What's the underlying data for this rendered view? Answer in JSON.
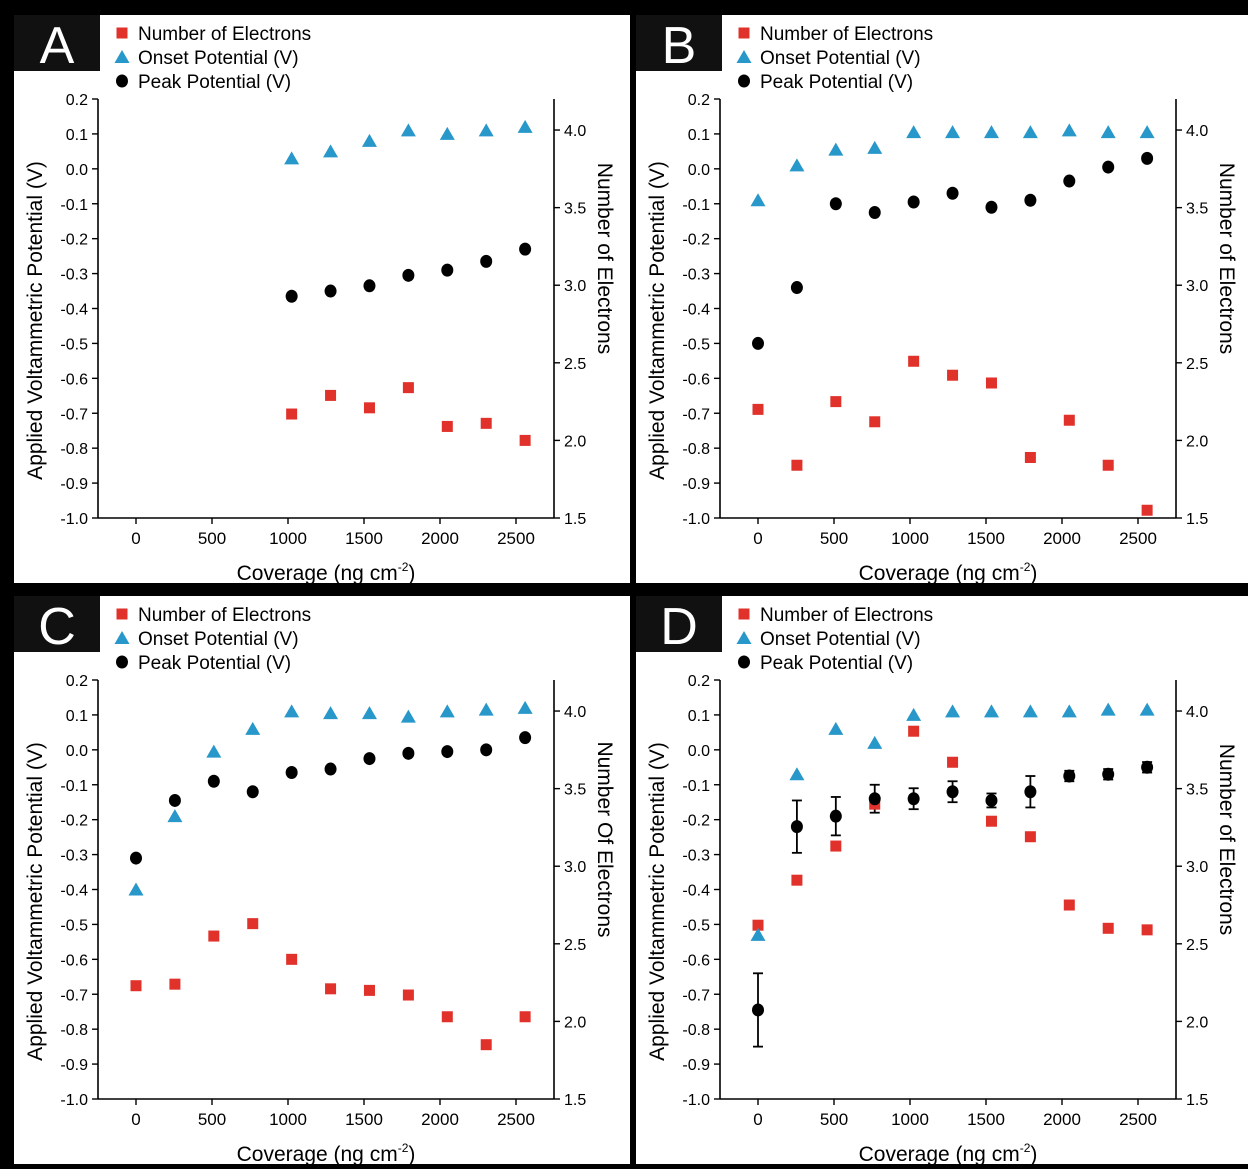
{
  "colors": {
    "electrons": "#e0312b",
    "onset": "#2897c9",
    "peak": "#000000",
    "panel_bg": "#ffffff",
    "frame": "#111111"
  },
  "icons": {
    "electrons": "square-marker",
    "onset": "triangle-marker",
    "peak": "circle-marker"
  },
  "chart_data": [
    {
      "panel": "A",
      "type": "scatter",
      "xlabel": "Coverage (ng cm",
      "xlabel_sup": "-2",
      "xlabel_end": ")",
      "ylabel": "Applied Voltammetric Potential (V)",
      "ylabel_right": "Number of Electrons",
      "xlim": [
        -250,
        2750
      ],
      "ylim": [
        -1.0,
        0.2
      ],
      "ylim_right": [
        1.5,
        4.2
      ],
      "xticks": [
        "0",
        "500",
        "1000",
        "1500",
        "2000",
        "2500"
      ],
      "yticks": [
        "0.2",
        "0.1",
        "0.0",
        "-0.1",
        "-0.2",
        "-0.3",
        "-0.4",
        "-0.5",
        "-0.6",
        "-0.7",
        "-0.8",
        "-0.9",
        "-1.0"
      ],
      "yticks_right": [
        "4.0",
        "3.5",
        "3.0",
        "2.5",
        "2.0",
        "1.5"
      ],
      "legend": [
        "Number of Electrons",
        "Onset Potential (V)",
        "Peak Potential (V)"
      ],
      "x": [
        1024,
        1280,
        1536,
        1792,
        2048,
        2304,
        2560
      ],
      "series": [
        {
          "name": "Number of Electrons",
          "axis": "right",
          "values": [
            2.17,
            2.29,
            2.21,
            2.34,
            2.09,
            2.11,
            2.0
          ]
        },
        {
          "name": "Onset Potential (V)",
          "axis": "left",
          "values": [
            0.03,
            0.05,
            0.08,
            0.11,
            0.1,
            0.11,
            0.12
          ]
        },
        {
          "name": "Peak Potential (V)",
          "axis": "left",
          "values": [
            -0.365,
            -0.35,
            -0.335,
            -0.305,
            -0.29,
            -0.265,
            -0.23
          ]
        }
      ]
    },
    {
      "panel": "B",
      "type": "scatter",
      "xlabel": "Coverage (ng cm",
      "xlabel_sup": "-2",
      "xlabel_end": ")",
      "ylabel": "Applied Voltammetric Potential (V)",
      "ylabel_right": "Number of Electrons",
      "xlim": [
        -250,
        2750
      ],
      "ylim": [
        -1.0,
        0.2
      ],
      "ylim_right": [
        1.5,
        4.2
      ],
      "xticks": [
        "0",
        "500",
        "1000",
        "1500",
        "2000",
        "2500"
      ],
      "yticks": [
        "0.2",
        "0.1",
        "0.0",
        "-0.1",
        "-0.2",
        "-0.3",
        "-0.4",
        "-0.5",
        "-0.6",
        "-0.7",
        "-0.8",
        "-0.9",
        "-1.0"
      ],
      "yticks_right": [
        "4.0",
        "3.5",
        "3.0",
        "2.5",
        "2.0",
        "1.5"
      ],
      "legend": [
        "Number of Electrons",
        "Onset Potential (V)",
        "Peak Potential (V)"
      ],
      "x": [
        0,
        256,
        512,
        768,
        1024,
        1280,
        1536,
        1792,
        2048,
        2304,
        2560
      ],
      "series": [
        {
          "name": "Number of Electrons",
          "axis": "right",
          "values": [
            2.2,
            1.84,
            2.25,
            2.12,
            2.51,
            2.42,
            2.37,
            1.89,
            2.13,
            1.84,
            1.55
          ]
        },
        {
          "name": "Onset Potential (V)",
          "axis": "left",
          "values": [
            -0.09,
            0.01,
            0.055,
            0.06,
            0.105,
            0.105,
            0.105,
            0.105,
            0.11,
            0.105,
            0.105
          ]
        },
        {
          "name": "Peak Potential (V)",
          "axis": "left",
          "values": [
            -0.5,
            -0.34,
            -0.1,
            -0.125,
            -0.095,
            -0.07,
            -0.11,
            -0.09,
            -0.035,
            0.005,
            0.03
          ]
        }
      ]
    },
    {
      "panel": "C",
      "type": "scatter",
      "xlabel": "Coverage (ng cm",
      "xlabel_sup": "-2",
      "xlabel_end": ")",
      "ylabel": "Applied Voltammetric Potential (V)",
      "ylabel_right": "Number Of Electrons",
      "xlim": [
        -250,
        2750
      ],
      "ylim": [
        -1.0,
        0.2
      ],
      "ylim_right": [
        1.5,
        4.2
      ],
      "xticks": [
        "0",
        "500",
        "1000",
        "1500",
        "2000",
        "2500"
      ],
      "yticks": [
        "0.2",
        "0.1",
        "0.0",
        "-0.1",
        "-0.2",
        "-0.3",
        "-0.4",
        "-0.5",
        "-0.6",
        "-0.7",
        "-0.8",
        "-0.9",
        "-1.0"
      ],
      "yticks_right": [
        "4.0",
        "3.5",
        "3.0",
        "2.5",
        "2.0",
        "1.5"
      ],
      "legend": [
        "Number of Electrons",
        "Onset Potential (V)",
        "Peak Potential (V)"
      ],
      "x": [
        0,
        256,
        512,
        768,
        1024,
        1280,
        1536,
        1792,
        2048,
        2304,
        2560
      ],
      "series": [
        {
          "name": "Number of Electrons",
          "axis": "right",
          "values": [
            2.23,
            2.24,
            2.55,
            2.63,
            2.4,
            2.21,
            2.2,
            2.17,
            2.03,
            1.85,
            2.03
          ]
        },
        {
          "name": "Onset Potential (V)",
          "axis": "left",
          "values": [
            -0.4,
            -0.19,
            -0.005,
            0.06,
            0.11,
            0.105,
            0.105,
            0.095,
            0.11,
            0.115,
            0.12
          ]
        },
        {
          "name": "Peak Potential (V)",
          "axis": "left",
          "values": [
            -0.31,
            -0.145,
            -0.09,
            -0.12,
            -0.065,
            -0.055,
            -0.025,
            -0.01,
            -0.005,
            0.0,
            0.035
          ]
        }
      ]
    },
    {
      "panel": "D",
      "type": "scatter",
      "xlabel": "Coverage (ng cm",
      "xlabel_sup": "-2",
      "xlabel_end": ")",
      "ylabel": "Applied Voltammetric Potential (V)",
      "ylabel_right": "Number of Electrons",
      "xlim": [
        -250,
        2750
      ],
      "ylim": [
        -1.0,
        0.2
      ],
      "ylim_right": [
        1.5,
        4.2
      ],
      "xticks": [
        "0",
        "500",
        "1000",
        "1500",
        "2000",
        "2500"
      ],
      "yticks": [
        "0.2",
        "0.1",
        "0.0",
        "-0.1",
        "-0.2",
        "-0.3",
        "-0.4",
        "-0.5",
        "-0.6",
        "-0.7",
        "-0.8",
        "-0.9",
        "-1.0"
      ],
      "yticks_right": [
        "4.0",
        "3.5",
        "3.0",
        "2.5",
        "2.0",
        "1.5"
      ],
      "legend": [
        "Number of Electrons",
        "Onset Potential (V)",
        "Peak Potential (V)"
      ],
      "x": [
        0,
        256,
        512,
        768,
        1024,
        1280,
        1536,
        1792,
        2048,
        2304,
        2560
      ],
      "series": [
        {
          "name": "Number of Electrons",
          "axis": "right",
          "values": [
            2.62,
            2.91,
            3.13,
            3.4,
            3.87,
            3.67,
            3.29,
            3.19,
            2.75,
            2.6,
            2.59
          ]
        },
        {
          "name": "Onset Potential (V)",
          "axis": "left",
          "values": [
            -0.53,
            -0.07,
            0.06,
            0.02,
            0.1,
            0.11,
            0.11,
            0.11,
            0.11,
            0.115,
            0.115
          ]
        },
        {
          "name": "Peak Potential (V)",
          "axis": "left",
          "values": [
            -0.745,
            -0.22,
            -0.19,
            -0.14,
            -0.14,
            -0.12,
            -0.145,
            -0.12,
            -0.075,
            -0.07,
            -0.05
          ],
          "error": [
            0.105,
            0.075,
            0.055,
            0.04,
            0.03,
            0.03,
            0.02,
            0.045,
            0.015,
            0.015,
            0.015
          ]
        }
      ]
    }
  ]
}
